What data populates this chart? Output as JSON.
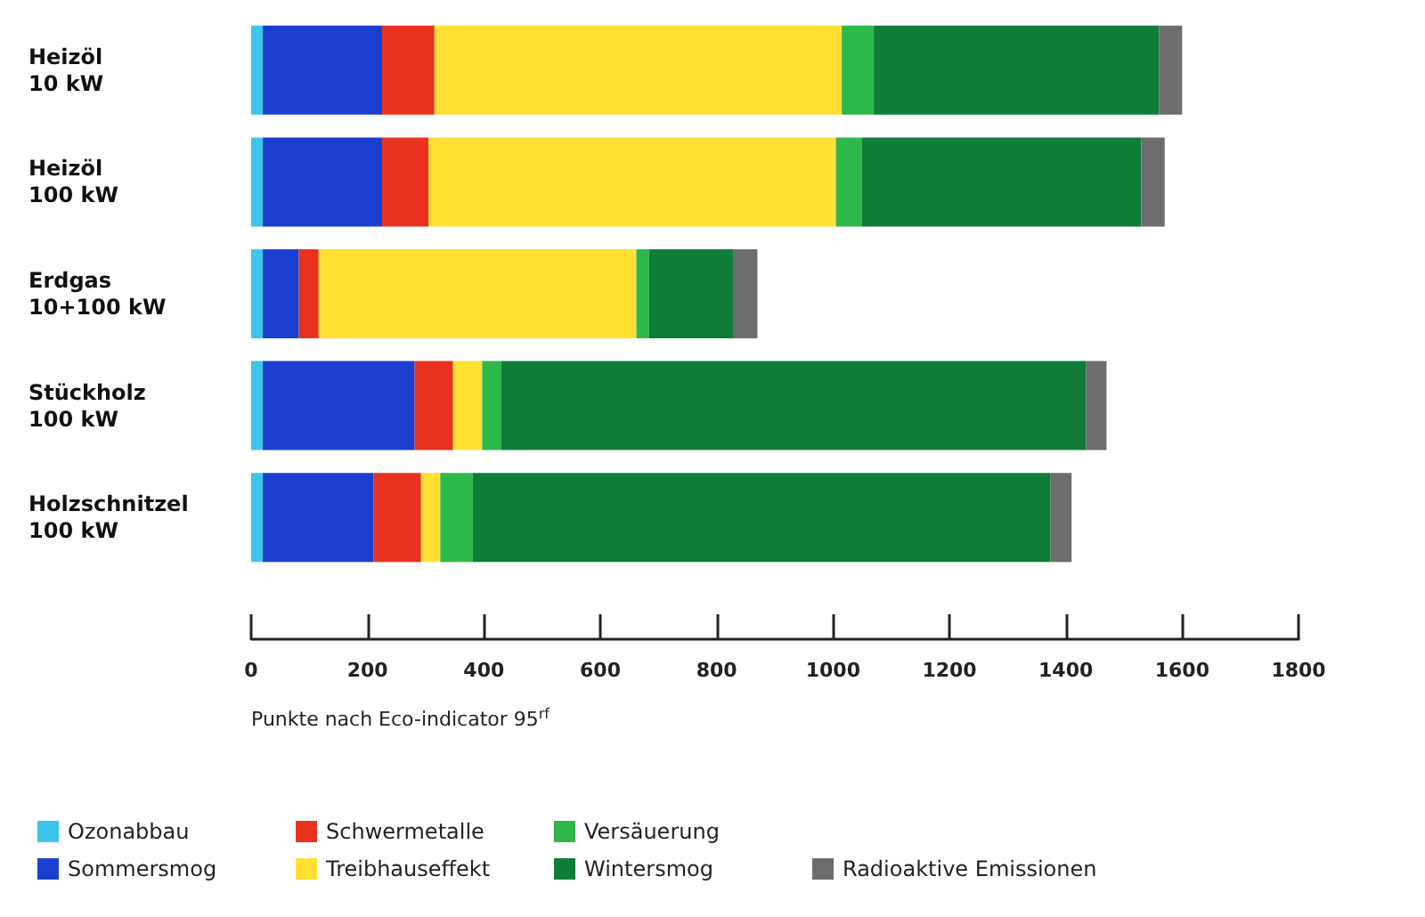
{
  "chart_data": {
    "type": "bar",
    "orientation": "horizontal",
    "stacked": true,
    "xlabel": "Punkte nach Eco-indicator 95$^{rf}$",
    "categories": [
      "Heizöl 10 kW",
      "Heizöl 100 kW",
      "Erdgas 10+100 kW",
      "Stückholz 100 kW",
      "Holzschnitzel 100 kW"
    ],
    "xlim": [
      0,
      1800
    ],
    "xticks": [
      0,
      200,
      400,
      600,
      800,
      1000,
      1200,
      1400,
      1600,
      1800
    ],
    "grid": false,
    "legend": "bottom left",
    "series": [
      {
        "name": "Ozonabbau",
        "color": "#3cc4ea",
        "values": [
          20,
          20,
          20,
          20,
          20
        ]
      },
      {
        "name": "Sommersmog",
        "color": "#1a3fcf",
        "values": [
          205,
          205,
          62,
          261,
          190
        ]
      },
      {
        "name": "Schwermetalle",
        "color": "#e8321e",
        "values": [
          90,
          80,
          34,
          66,
          82
        ]
      },
      {
        "name": "Treibhauseffekt",
        "color": "#ffe033",
        "values": [
          700,
          700,
          546,
          50,
          33
        ]
      },
      {
        "name": "Versäuerung",
        "color": "#2fb84a",
        "values": [
          55,
          45,
          22,
          33,
          56
        ]
      },
      {
        "name": "Wintersmog",
        "color": "#0f7c3a",
        "values": [
          490,
          480,
          144,
          1005,
          993
        ]
      },
      {
        "name": "Radioaktive Emissionen",
        "color": "#6d6d6d",
        "values": [
          40,
          40,
          42,
          35,
          36
        ]
      }
    ]
  }
}
